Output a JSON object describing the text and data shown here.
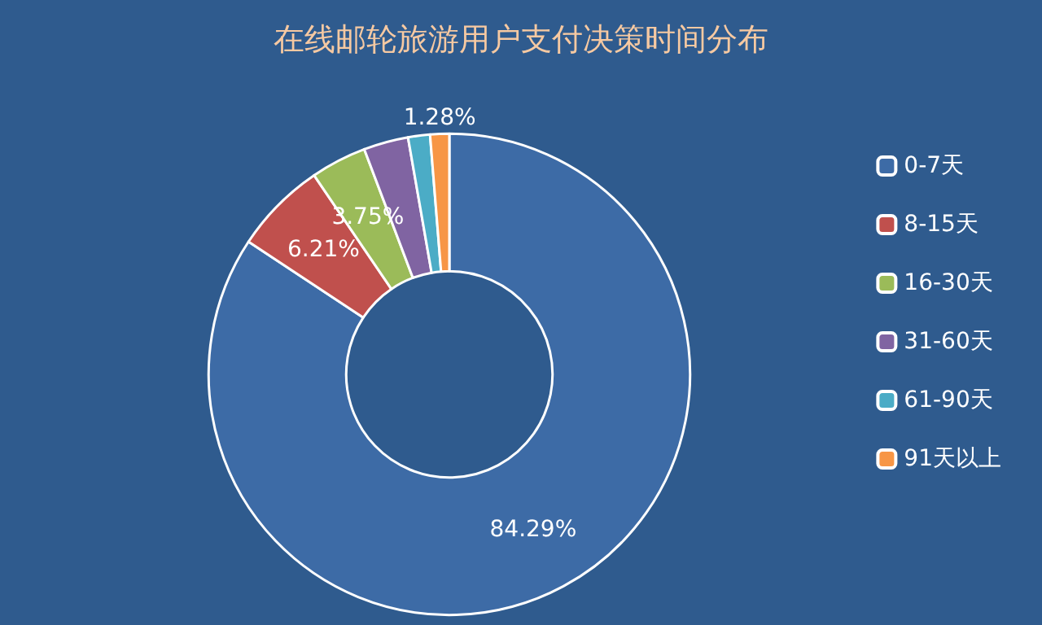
{
  "chart_data": {
    "type": "donut",
    "title": "在线邮轮旅游用户支付决策时间分布",
    "categories": [
      "0-7天",
      "8-15天",
      "16-30天",
      "31-60天",
      "61-90天",
      "91天以上"
    ],
    "values": [
      84.29,
      6.21,
      3.75,
      3.0,
      1.47,
      1.28
    ],
    "value_labels": [
      "84.29%",
      "6.21%",
      "3.75%",
      null,
      null,
      "1.28%"
    ],
    "colors": [
      "#3d6ba6",
      "#c0504d",
      "#9bbb59",
      "#8064a2",
      "#4bacc6",
      "#f79646"
    ],
    "legend": "right"
  }
}
